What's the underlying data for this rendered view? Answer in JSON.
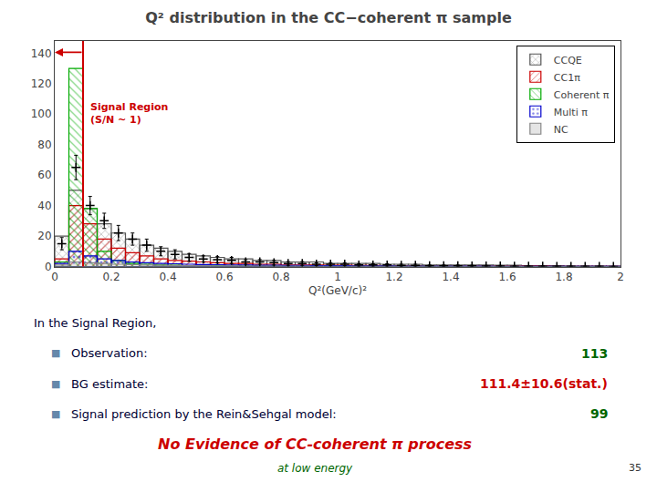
{
  "chart_data": {
    "type": "histogram",
    "title": "Q² distribution in the CC−coherent π sample",
    "x_label": "Q²(GeV/c)²",
    "bins": [
      0.0,
      0.05,
      0.1,
      0.15,
      0.2,
      0.25,
      0.3,
      0.35,
      0.4,
      0.45,
      0.5,
      0.55,
      0.6,
      0.65,
      0.7,
      0.75,
      0.8,
      0.85,
      0.9,
      0.95,
      1.0,
      1.05,
      1.1,
      1.15,
      1.2,
      1.25,
      1.3,
      1.35,
      1.4,
      1.45,
      1.5,
      1.55,
      1.6,
      1.65,
      1.7,
      1.75,
      1.8,
      1.85,
      1.9,
      1.95,
      2.0
    ],
    "series": [
      {
        "name": "CCQE",
        "color": "#555555",
        "values": [
          20,
          50,
          38,
          28,
          22,
          18,
          14,
          12,
          10,
          8,
          7,
          6,
          5,
          5,
          4,
          4,
          3,
          3,
          3,
          2,
          2,
          2,
          2,
          1.5,
          1.5,
          1.5,
          1,
          1,
          1,
          1,
          1,
          0.8,
          0.8,
          0.5,
          0.5,
          0.5,
          0.3,
          0.3,
          0.3,
          0.2
        ]
      },
      {
        "name": "CC1π",
        "color": "#cc0000",
        "values": [
          5,
          40,
          28,
          18,
          12,
          9,
          7,
          5,
          4,
          3.5,
          3,
          2.5,
          2,
          2,
          1.5,
          1.5,
          1,
          1,
          1,
          0.8,
          0.8,
          0.7,
          0.7,
          0.5,
          0.5,
          0.5,
          0.4,
          0.4,
          0.4,
          0.3,
          0.3,
          0.2,
          0.2,
          0.2,
          0.2,
          0.1,
          0.1,
          0.1,
          0.1,
          0.1
        ]
      },
      {
        "name": "Coherent π",
        "color": "#00aa00",
        "values": [
          3,
          130,
          38,
          10,
          4,
          2,
          1.5,
          1,
          0.8,
          0.6,
          0.5,
          0.4,
          0.3,
          0.3,
          0.2,
          0.2,
          0.1,
          0.1,
          0.1,
          0.1,
          0.1,
          0.05,
          0.05,
          0.05,
          0.05,
          0.05,
          0.03,
          0.03,
          0.03,
          0.02,
          0.02,
          0.02,
          0.01,
          0.01,
          0.01,
          0.01,
          0.01,
          0.01,
          0.005,
          0.005
        ]
      },
      {
        "name": "Multi π",
        "color": "#0000cc",
        "values": [
          2,
          10,
          7,
          5,
          4,
          3,
          2.5,
          2,
          1.8,
          1.5,
          1.3,
          1.2,
          1,
          1,
          0.8,
          0.8,
          0.7,
          0.7,
          0.6,
          0.5,
          0.5,
          0.4,
          0.4,
          0.4,
          0.3,
          0.3,
          0.3,
          0.2,
          0.2,
          0.2,
          0.2,
          0.15,
          0.15,
          0.1,
          0.1,
          0.1,
          0.1,
          0.05,
          0.05,
          0.05
        ]
      },
      {
        "name": "NC",
        "color": "#888888",
        "values": [
          1,
          3,
          2.5,
          2,
          1.5,
          1.2,
          1,
          0.8,
          0.7,
          0.6,
          0.5,
          0.4,
          0.4,
          0.3,
          0.3,
          0.2,
          0.2,
          0.2,
          0.15,
          0.15,
          0.1,
          0.1,
          0.1,
          0.1,
          0.08,
          0.08,
          0.05,
          0.05,
          0.05,
          0.04,
          0.04,
          0.03,
          0.03,
          0.02,
          0.02,
          0.02,
          0.01,
          0.01,
          0.01,
          0.01
        ]
      }
    ],
    "data_points": {
      "color": "#000000",
      "marker": "cross",
      "x": [
        0.025,
        0.075,
        0.125,
        0.175,
        0.225,
        0.275,
        0.325,
        0.375,
        0.425,
        0.475,
        0.525,
        0.575,
        0.625,
        0.675,
        0.725,
        0.775,
        0.825,
        0.875,
        0.925,
        0.975,
        1.025,
        1.075,
        1.125,
        1.175,
        1.225,
        1.275,
        1.325,
        1.375,
        1.425,
        1.475,
        1.525,
        1.575,
        1.625,
        1.675,
        1.725,
        1.775,
        1.825,
        1.875,
        1.925,
        1.975
      ],
      "values": [
        15,
        65,
        40,
        30,
        22,
        18,
        14,
        10,
        8,
        6,
        5,
        4.5,
        4,
        3,
        3,
        2.5,
        2,
        2,
        1.5,
        1.5,
        1.5,
        1,
        1,
        1,
        0.8,
        0.8,
        0.5,
        0.5,
        0.5,
        0.4,
        0.3,
        0.3,
        0.2,
        0.2,
        0.2,
        0.1,
        0.1,
        0.1,
        0.1,
        0.05
      ],
      "errors": [
        4,
        8,
        6,
        5,
        5,
        4,
        4,
        3,
        3,
        2.5,
        2,
        2,
        2,
        1.5,
        1.5,
        1.5,
        1.2,
        1.2,
        1,
        1,
        1,
        0.8,
        0.8,
        0.8,
        0.7,
        0.7,
        0.5,
        0.5,
        0.5,
        0.4,
        0.4,
        0.4,
        0.3,
        0.3,
        0.3,
        0.2,
        0.2,
        0.2,
        0.2,
        0.15
      ]
    },
    "signal_region": {
      "x": 0.1,
      "color": "#cc0000",
      "text": "Signal Region\n(S/N ~ 1)"
    },
    "xlim": [
      0,
      2
    ],
    "ylim": [
      0,
      148
    ],
    "xticks": [
      0,
      0.2,
      0.4,
      0.6,
      0.8,
      1,
      1.2,
      1.4,
      1.6,
      1.8,
      2
    ],
    "yticks": [
      0,
      20,
      40,
      60,
      80,
      100,
      120,
      140
    ],
    "grid": false,
    "legend": "upper right",
    "notes": {
      "heading": {
        "text": "In the Signal Region,",
        "color": "#000033"
      },
      "bullet": {
        "text": "■",
        "color": "#6688aa"
      },
      "rows": [
        {
          "label": "Observation:",
          "value": "113",
          "color": "#006600"
        },
        {
          "label": "BG estimate:",
          "value": "111.4±10.6(stat.)",
          "color": "#cc0000"
        },
        {
          "label": "Signal prediction by the Rein&Sehgal model:",
          "value": "99",
          "color": "#006600"
        }
      ],
      "label_color": "#000033",
      "conclusion": {
        "text": "No Evidence of CC-coherent π process",
        "color": "#cc0000"
      },
      "subtext": {
        "text": "at low energy",
        "color": "#006600"
      },
      "page_number": {
        "text": "35",
        "color": "#333333"
      }
    }
  }
}
